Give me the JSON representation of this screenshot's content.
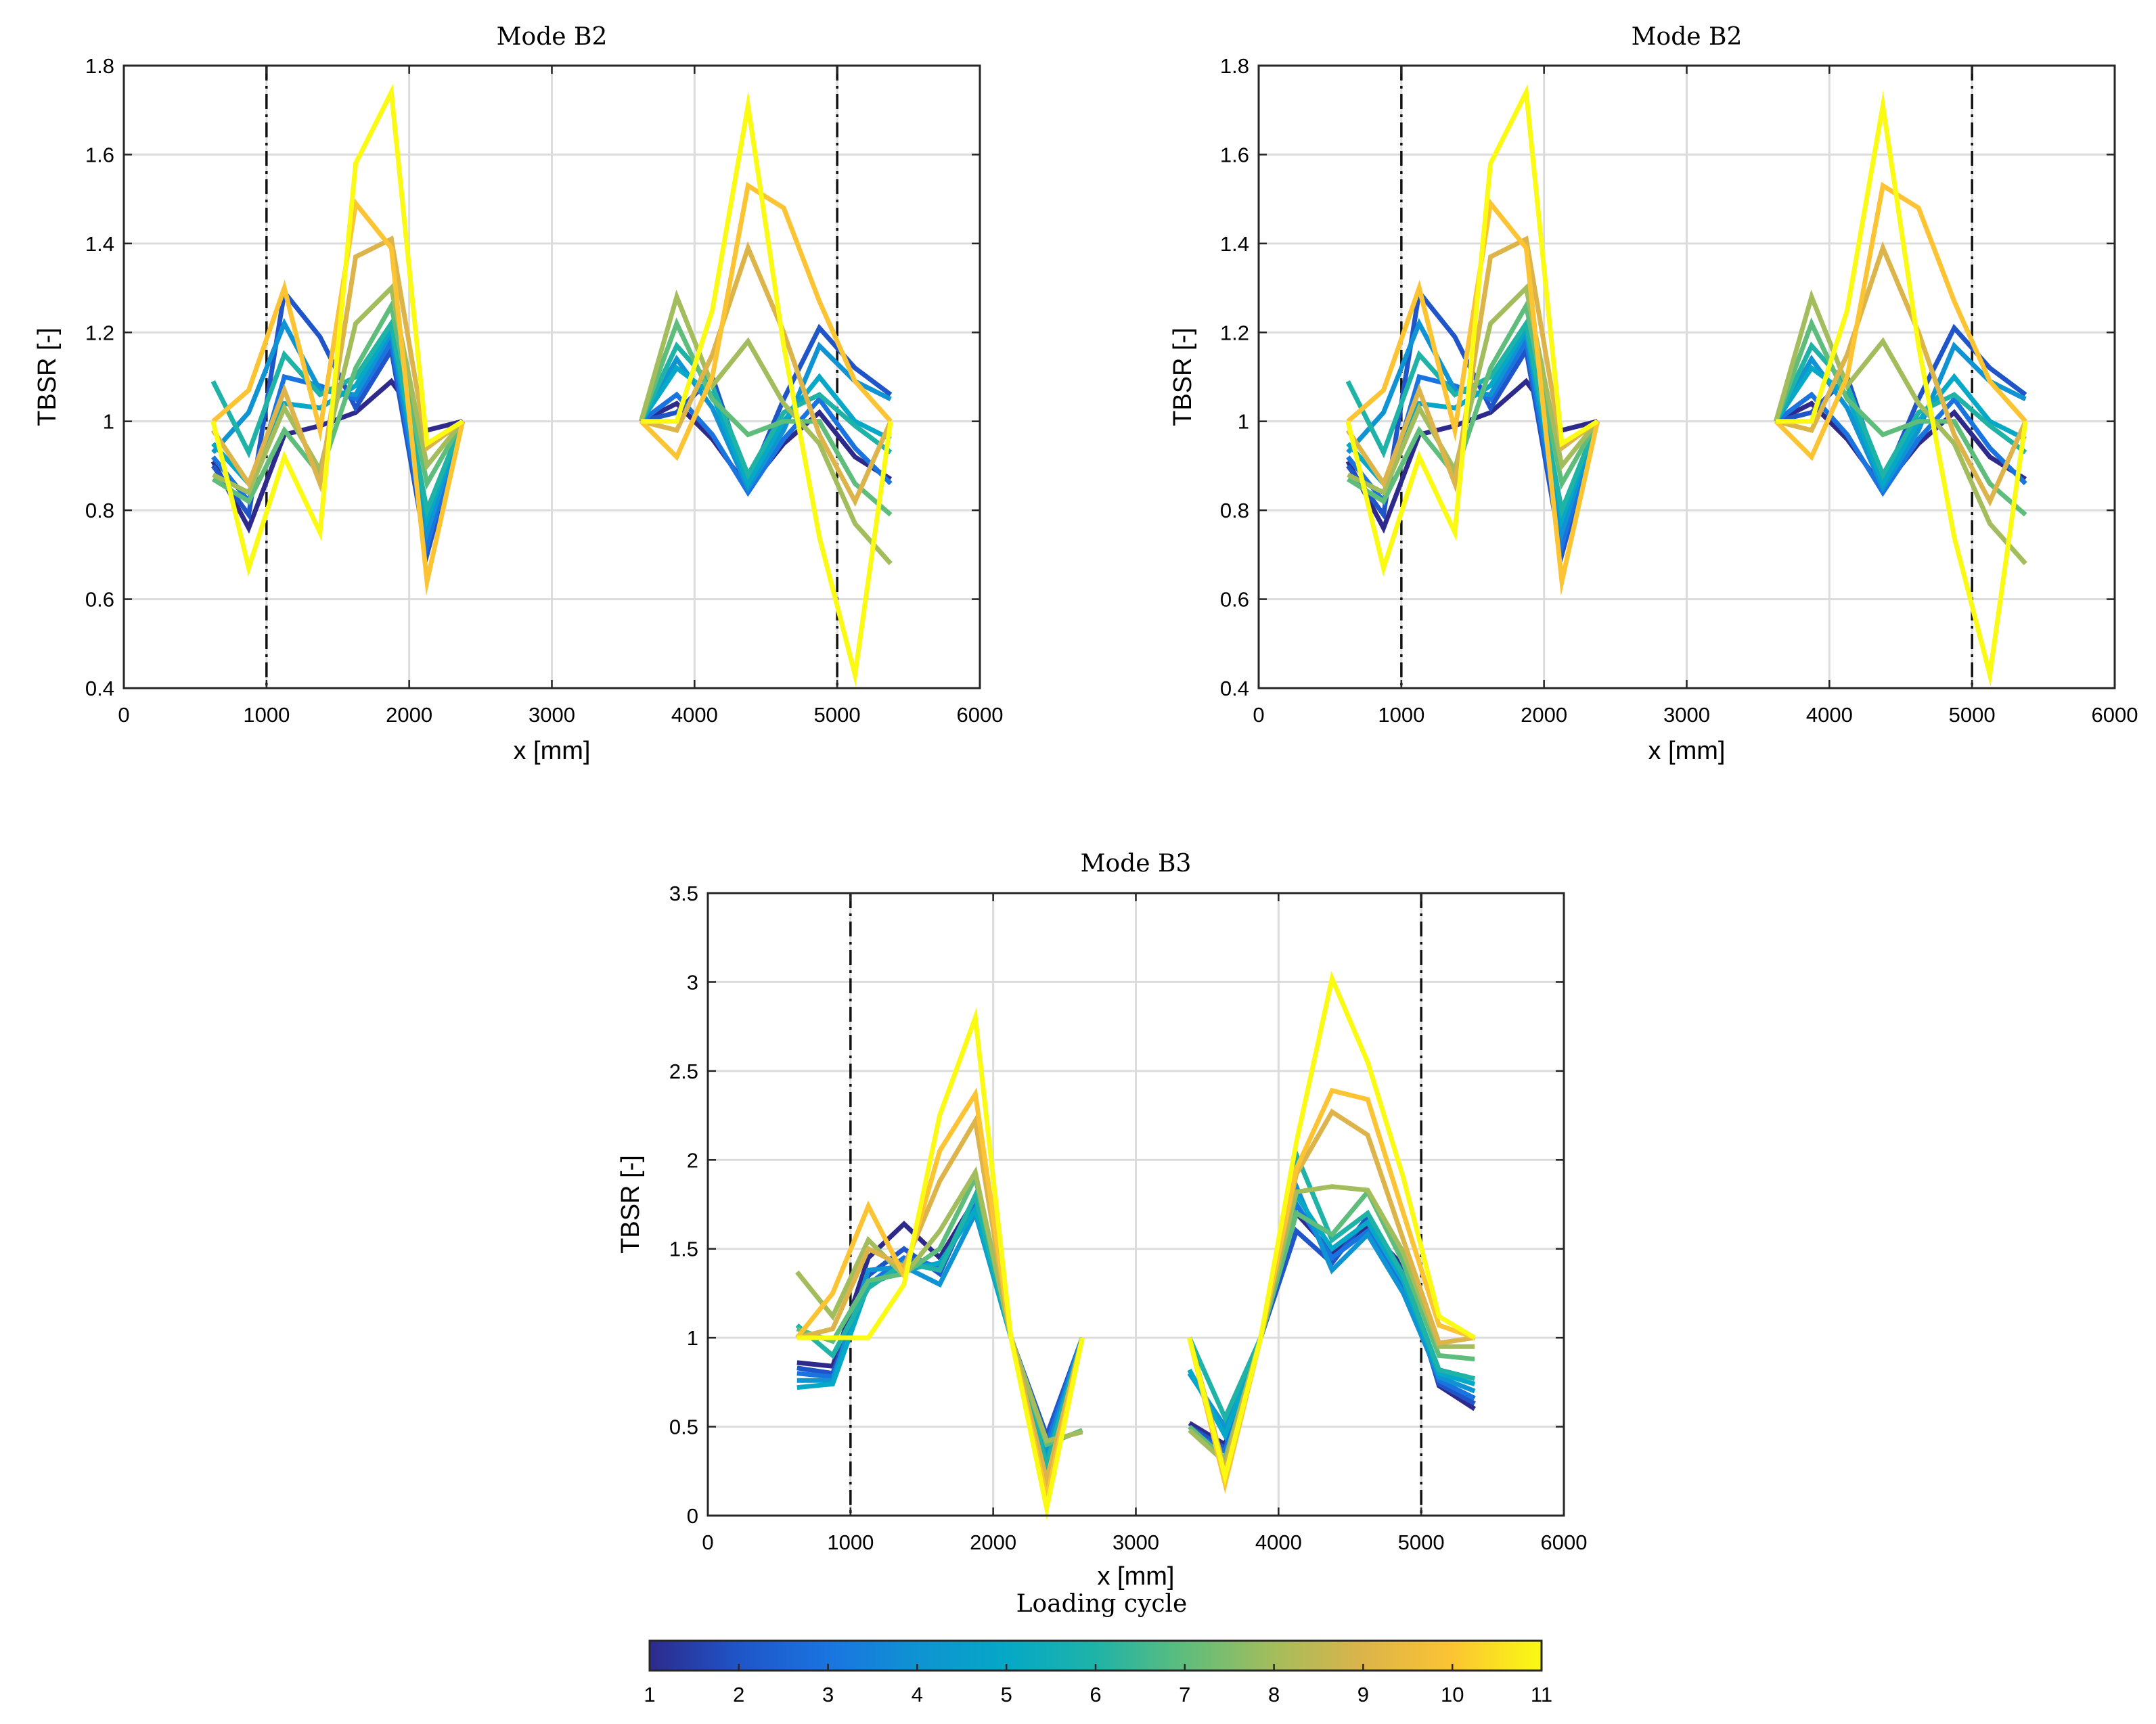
{
  "figure": {
    "colorbar": {
      "label": "Loading cycle",
      "ticks": [
        "1",
        "2",
        "3",
        "4",
        "5",
        "6",
        "7",
        "8",
        "9",
        "10",
        "11"
      ],
      "colors": [
        "#2d2a8c",
        "#1f55c8",
        "#1a74e0",
        "#0f93d2",
        "#05a8c6",
        "#1fb3a8",
        "#5fbd7c",
        "#a4bd5c",
        "#dcb44a",
        "#fcc433",
        "#fafa13"
      ]
    }
  },
  "chart_data": [
    {
      "type": "line",
      "title": "Mode B2",
      "xlabel": "x [mm]",
      "ylabel": "TBSR [-]",
      "xlim": [
        0,
        6000
      ],
      "ylim": [
        0.4,
        1.8
      ],
      "xticks": [
        "0",
        "1000",
        "2000",
        "3000",
        "4000",
        "5000",
        "6000"
      ],
      "yticks": [
        "0.4",
        "0.6",
        "0.8",
        "1",
        "1.2",
        "1.4",
        "1.6",
        "1.8"
      ],
      "grid": true,
      "vlines": [
        1000,
        5000
      ],
      "x": [
        625,
        875,
        1125,
        1375,
        1625,
        1875,
        2125,
        2375,
        null,
        3625,
        3875,
        4125,
        4375,
        4625,
        4875,
        5125,
        5375
      ],
      "series": [
        {
          "values": [
            0.91,
            0.76,
            0.97,
            0.99,
            1.02,
            1.09,
            0.98,
            1.0,
            null,
            1.0,
            1.04,
            0.96,
            0.85,
            0.95,
            1.02,
            0.92,
            0.87
          ]
        },
        {
          "values": [
            0.9,
            0.79,
            1.29,
            1.19,
            1.03,
            1.16,
            0.7,
            1.0,
            null,
            1.0,
            1.02,
            1.1,
            0.86,
            1.05,
            1.21,
            1.12,
            1.06
          ]
        },
        {
          "values": [
            0.92,
            0.82,
            1.1,
            1.08,
            1.05,
            1.18,
            0.72,
            1.0,
            null,
            1.0,
            1.06,
            0.97,
            0.84,
            0.96,
            1.05,
            0.94,
            0.86
          ]
        },
        {
          "values": [
            0.93,
            1.02,
            1.22,
            1.07,
            1.06,
            1.2,
            0.75,
            1.0,
            null,
            1.0,
            1.14,
            1.03,
            0.85,
            0.98,
            1.17,
            1.09,
            1.05
          ]
        },
        {
          "values": [
            0.95,
            0.86,
            1.04,
            1.03,
            1.08,
            1.21,
            0.78,
            1.0,
            null,
            1.0,
            1.12,
            1.06,
            0.86,
            1.0,
            1.1,
            1.0,
            0.96
          ]
        },
        {
          "values": [
            1.09,
            0.93,
            1.15,
            1.06,
            1.1,
            1.22,
            0.8,
            1.0,
            null,
            1.0,
            1.17,
            1.08,
            0.88,
            1.02,
            1.06,
            0.99,
            0.93
          ]
        },
        {
          "values": [
            0.87,
            0.82,
            0.98,
            0.88,
            1.12,
            1.26,
            0.86,
            1.0,
            null,
            1.0,
            1.22,
            1.05,
            0.97,
            1.0,
            1.0,
            0.86,
            0.79
          ]
        },
        {
          "values": [
            0.88,
            0.84,
            1.03,
            0.89,
            1.22,
            1.3,
            0.9,
            1.0,
            null,
            1.0,
            1.28,
            1.08,
            1.18,
            1.04,
            0.95,
            0.77,
            0.68
          ]
        },
        {
          "values": [
            0.98,
            0.86,
            1.07,
            0.86,
            1.37,
            1.41,
            0.94,
            1.0,
            null,
            1.0,
            0.98,
            1.15,
            1.39,
            1.2,
            0.97,
            0.82,
            1.0
          ]
        },
        {
          "values": [
            1.0,
            1.07,
            1.3,
            0.98,
            1.49,
            1.39,
            0.64,
            1.0,
            null,
            1.0,
            0.92,
            1.1,
            1.53,
            1.48,
            1.27,
            1.09,
            1.0
          ]
        },
        {
          "values": [
            1.0,
            0.67,
            0.92,
            0.75,
            1.58,
            1.74,
            0.95,
            1.0,
            null,
            1.0,
            1.0,
            1.25,
            1.71,
            1.17,
            0.74,
            0.43,
            1.0
          ]
        }
      ]
    },
    {
      "type": "line",
      "title": "Mode B2",
      "xlabel": "x [mm]",
      "ylabel": "TBSR [-]",
      "xlim": [
        0,
        6000
      ],
      "ylim": [
        0.4,
        1.8
      ],
      "xticks": [
        "0",
        "1000",
        "2000",
        "3000",
        "4000",
        "5000",
        "6000"
      ],
      "yticks": [
        "0.4",
        "0.6",
        "0.8",
        "1",
        "1.2",
        "1.4",
        "1.6",
        "1.8"
      ],
      "grid": true,
      "vlines": [
        1000,
        5000
      ],
      "x": [
        625,
        875,
        1125,
        1375,
        1625,
        1875,
        2125,
        2375,
        null,
        3625,
        3875,
        4125,
        4375,
        4625,
        4875,
        5125,
        5375
      ],
      "series": [
        {
          "values": [
            0.91,
            0.76,
            0.97,
            0.99,
            1.02,
            1.09,
            0.98,
            1.0,
            null,
            1.0,
            1.04,
            0.96,
            0.85,
            0.95,
            1.02,
            0.92,
            0.87
          ]
        },
        {
          "values": [
            0.9,
            0.79,
            1.29,
            1.19,
            1.03,
            1.16,
            0.7,
            1.0,
            null,
            1.0,
            1.02,
            1.1,
            0.86,
            1.05,
            1.21,
            1.12,
            1.06
          ]
        },
        {
          "values": [
            0.92,
            0.82,
            1.1,
            1.08,
            1.05,
            1.18,
            0.72,
            1.0,
            null,
            1.0,
            1.06,
            0.97,
            0.84,
            0.96,
            1.05,
            0.94,
            0.86
          ]
        },
        {
          "values": [
            0.93,
            1.02,
            1.22,
            1.07,
            1.06,
            1.2,
            0.75,
            1.0,
            null,
            1.0,
            1.14,
            1.03,
            0.85,
            0.98,
            1.17,
            1.09,
            1.05
          ]
        },
        {
          "values": [
            0.95,
            0.86,
            1.04,
            1.03,
            1.08,
            1.21,
            0.78,
            1.0,
            null,
            1.0,
            1.12,
            1.06,
            0.86,
            1.0,
            1.1,
            1.0,
            0.96
          ]
        },
        {
          "values": [
            1.09,
            0.93,
            1.15,
            1.06,
            1.1,
            1.22,
            0.8,
            1.0,
            null,
            1.0,
            1.17,
            1.08,
            0.88,
            1.02,
            1.06,
            0.99,
            0.93
          ]
        },
        {
          "values": [
            0.87,
            0.82,
            0.98,
            0.88,
            1.12,
            1.26,
            0.86,
            1.0,
            null,
            1.0,
            1.22,
            1.05,
            0.97,
            1.0,
            1.0,
            0.86,
            0.79
          ]
        },
        {
          "values": [
            0.88,
            0.84,
            1.03,
            0.89,
            1.22,
            1.3,
            0.9,
            1.0,
            null,
            1.0,
            1.28,
            1.08,
            1.18,
            1.04,
            0.95,
            0.77,
            0.68
          ]
        },
        {
          "values": [
            0.98,
            0.86,
            1.07,
            0.86,
            1.37,
            1.41,
            0.94,
            1.0,
            null,
            1.0,
            0.98,
            1.15,
            1.39,
            1.2,
            0.97,
            0.82,
            1.0
          ]
        },
        {
          "values": [
            1.0,
            1.07,
            1.3,
            0.98,
            1.49,
            1.39,
            0.64,
            1.0,
            null,
            1.0,
            0.92,
            1.1,
            1.53,
            1.48,
            1.27,
            1.09,
            1.0
          ]
        },
        {
          "values": [
            1.0,
            0.67,
            0.92,
            0.75,
            1.58,
            1.74,
            0.95,
            1.0,
            null,
            1.0,
            1.0,
            1.25,
            1.71,
            1.17,
            0.74,
            0.43,
            1.0
          ]
        }
      ]
    },
    {
      "type": "line",
      "title": "Mode B3",
      "xlabel": "x [mm]",
      "ylabel": "TBSR [-]",
      "xlim": [
        0,
        6000
      ],
      "ylim": [
        0,
        3.5
      ],
      "xticks": [
        "0",
        "1000",
        "2000",
        "3000",
        "4000",
        "5000",
        "6000"
      ],
      "yticks": [
        "0",
        "0.5",
        "1",
        "1.5",
        "2",
        "2.5",
        "3",
        "3.5"
      ],
      "grid": true,
      "vlines": [
        1000,
        5000
      ],
      "x": [
        625,
        875,
        1125,
        1375,
        1625,
        1875,
        2125,
        2375,
        2625,
        null,
        3375,
        3625,
        3875,
        4125,
        4375,
        4625,
        4875,
        5125,
        5375
      ],
      "series": [
        {
          "values": [
            0.86,
            0.84,
            1.45,
            1.64,
            1.45,
            1.78,
            1.0,
            0.38,
            1.0,
            null,
            0.52,
            0.4,
            1.0,
            1.7,
            1.48,
            1.62,
            1.4,
            0.73,
            0.6
          ]
        },
        {
          "values": [
            0.83,
            0.8,
            1.35,
            1.5,
            1.36,
            1.8,
            1.0,
            0.45,
            1.0,
            null,
            0.5,
            0.38,
            1.0,
            1.6,
            1.42,
            1.68,
            1.36,
            0.74,
            0.63
          ]
        },
        {
          "values": [
            0.8,
            0.78,
            1.3,
            1.45,
            1.4,
            1.75,
            1.0,
            0.4,
            1.0,
            null,
            0.48,
            0.36,
            1.0,
            1.75,
            1.45,
            1.6,
            1.3,
            0.76,
            0.66
          ]
        },
        {
          "values": [
            0.76,
            0.76,
            1.38,
            1.4,
            1.3,
            1.7,
            1.0,
            0.35,
            1.0,
            null,
            0.8,
            0.5,
            1.0,
            1.85,
            1.38,
            1.58,
            1.25,
            0.78,
            0.7
          ]
        },
        {
          "values": [
            0.72,
            0.74,
            1.3,
            1.38,
            1.42,
            1.72,
            1.0,
            0.3,
            1.0,
            null,
            0.82,
            0.45,
            1.0,
            1.8,
            1.5,
            1.65,
            1.32,
            0.8,
            0.74
          ]
        },
        {
          "values": [
            1.07,
            0.9,
            1.28,
            1.42,
            1.38,
            1.8,
            1.0,
            0.28,
            1.0,
            null,
            1.0,
            0.55,
            1.0,
            2.03,
            1.55,
            1.7,
            1.35,
            0.82,
            0.77
          ]
        },
        {
          "values": [
            1.05,
            0.98,
            1.32,
            1.36,
            1.5,
            1.9,
            1.0,
            0.4,
            0.48,
            null,
            0.5,
            0.32,
            1.0,
            1.7,
            1.58,
            1.82,
            1.42,
            0.9,
            0.88
          ]
        },
        {
          "values": [
            1.37,
            1.12,
            1.55,
            1.35,
            1.6,
            1.93,
            1.0,
            0.42,
            0.47,
            null,
            0.48,
            0.3,
            1.0,
            1.82,
            1.85,
            1.83,
            1.48,
            0.95,
            0.95
          ]
        },
        {
          "values": [
            1.0,
            1.05,
            1.5,
            1.4,
            1.88,
            2.22,
            1.0,
            0.2,
            1.0,
            null,
            1.0,
            0.25,
            1.0,
            1.92,
            2.27,
            2.14,
            1.55,
            0.97,
            1.0
          ]
        },
        {
          "values": [
            1.0,
            1.25,
            1.74,
            1.35,
            2.05,
            2.37,
            1.0,
            0.1,
            1.0,
            null,
            1.0,
            0.18,
            1.0,
            1.95,
            2.39,
            2.34,
            1.7,
            1.07,
            1.0
          ]
        },
        {
          "values": [
            1.0,
            1.0,
            1.0,
            1.3,
            2.25,
            2.8,
            1.0,
            0.04,
            1.0,
            null,
            1.0,
            0.22,
            1.0,
            2.1,
            3.02,
            2.55,
            1.9,
            1.12,
            1.0
          ]
        }
      ]
    }
  ]
}
